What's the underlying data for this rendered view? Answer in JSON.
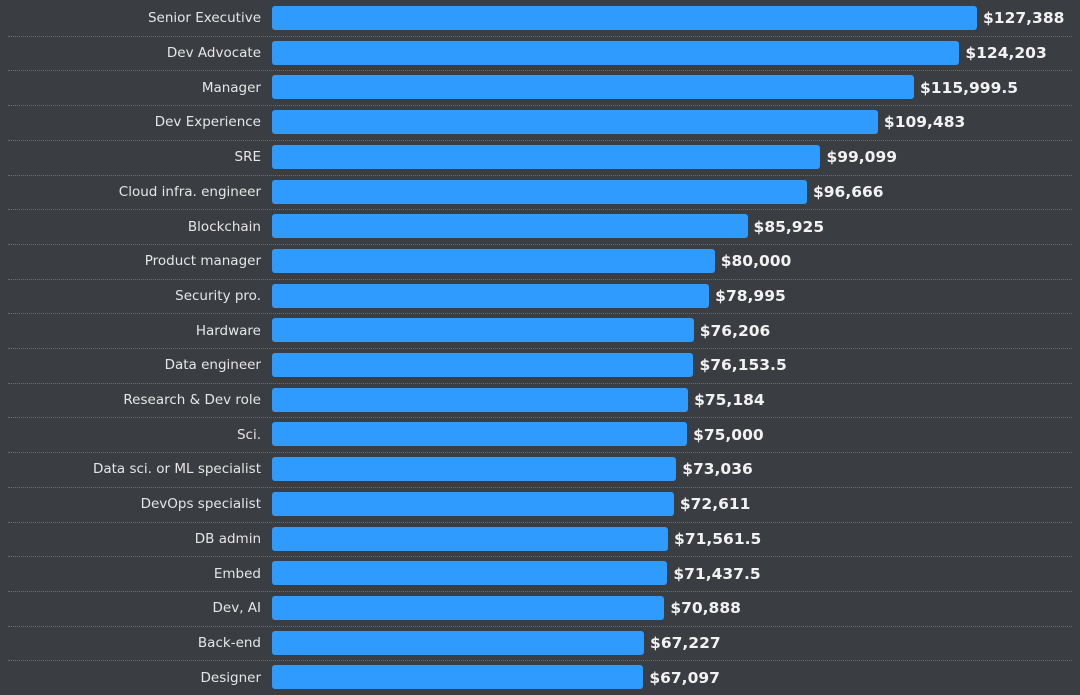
{
  "chart_data": {
    "type": "bar",
    "orientation": "horizontal",
    "categories": [
      "Senior Executive",
      "Dev Advocate",
      "Manager",
      "Dev Experience",
      "SRE",
      "Cloud infra. engineer",
      "Blockchain",
      "Product manager",
      "Security pro.",
      "Hardware",
      "Data engineer",
      "Research & Dev role",
      "Sci.",
      "Data sci. or ML specialist",
      "DevOps specialist",
      "DB admin",
      "Embed",
      "Dev, AI",
      "Back-end",
      "Designer"
    ],
    "values": [
      127388,
      124203,
      115999.5,
      109483,
      99099,
      96666,
      85925,
      80000,
      78995,
      76206,
      76153.5,
      75184,
      75000,
      73036,
      72611,
      71561.5,
      71437.5,
      70888,
      67227,
      67097
    ],
    "labels": [
      "$127,388",
      "$124,203",
      "$115,999.5",
      "$109,483",
      "$99,099",
      "$96,666",
      "$85,925",
      "$80,000",
      "$78,995",
      "$76,206",
      "$76,153.5",
      "$75,184",
      "$75,000",
      "$73,036",
      "$72,611",
      "$71,561.5",
      "$71,437.5",
      "$70,888",
      "$67,227",
      "$67,097"
    ],
    "xlim": [
      0,
      127388
    ],
    "grid": false,
    "bar_color": "#2f9bff",
    "background": "#3a3d42"
  }
}
